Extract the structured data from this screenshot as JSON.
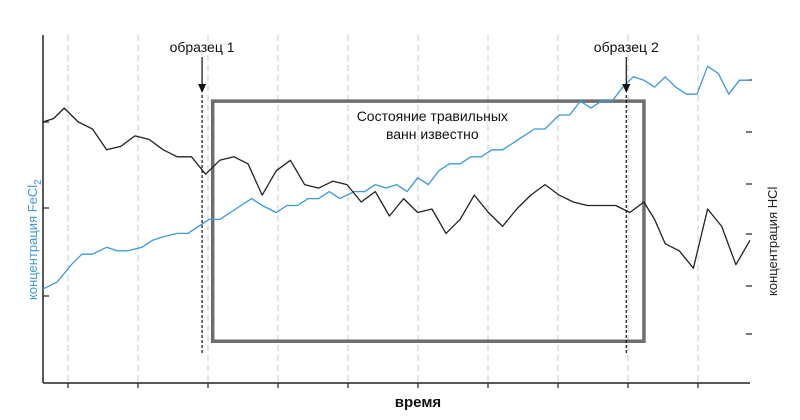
{
  "chart_data": {
    "type": "line",
    "xlabel": "время",
    "ylabel_left": "концентрация FeCl2",
    "ylabel_left_main": "концентрация FeCl",
    "ylabel_left_sub": "2",
    "ylabel_right": "концентрация HCl",
    "grid": "vertical dashed",
    "xlim": [
      0,
      100
    ],
    "ylim": [
      0,
      100
    ],
    "colors": {
      "fecl2": "#3b9ad9",
      "hcl": "#222222",
      "box": "#6e6e6e",
      "axis": "#222222",
      "grid": "#c8c8c8"
    },
    "series": [
      {
        "key": "fecl2",
        "color": "#3b9ad9",
        "x": [
          0,
          2,
          4,
          5.5,
          7,
          9,
          10.5,
          12,
          14,
          15.5,
          17,
          19,
          20.5,
          22,
          23.5,
          25,
          26.5,
          28,
          29.5,
          31,
          33,
          34.5,
          36,
          37.5,
          39,
          40.5,
          42,
          44,
          45.5,
          47,
          48.5,
          50,
          51.5,
          53,
          54.5,
          56,
          57.5,
          59,
          60.5,
          62,
          63.5,
          65,
          66.5,
          68,
          69.5,
          71,
          73,
          74.5,
          76,
          77.5,
          79,
          80.5,
          82,
          83.5,
          85,
          86.5,
          88,
          89.5,
          91,
          92.5,
          94,
          95.5,
          97,
          98.5,
          100
        ],
        "y": [
          27,
          29,
          34,
          37,
          37,
          39,
          38,
          38,
          39,
          41,
          42,
          43,
          43,
          45,
          47,
          47,
          49,
          51,
          53,
          51,
          49,
          51,
          51,
          53,
          53,
          55,
          53,
          55,
          55,
          57,
          56,
          57,
          55,
          59,
          57,
          61,
          63,
          63,
          65,
          65,
          67,
          67,
          69,
          71,
          73,
          73,
          77,
          77,
          81,
          79,
          81,
          81,
          85,
          88,
          87,
          85,
          88,
          85,
          83,
          83,
          91,
          89,
          83,
          87,
          87
        ]
      },
      {
        "key": "hcl",
        "color": "#222222",
        "x": [
          0,
          1.5,
          3,
          5,
          7,
          9,
          11,
          13,
          15,
          17,
          19,
          21,
          23,
          25,
          27,
          29,
          31,
          33,
          35,
          37,
          39,
          41,
          43,
          45,
          47,
          49,
          51,
          53,
          55,
          57,
          59,
          61,
          63,
          65,
          67,
          69,
          71,
          73,
          75,
          77,
          79,
          81,
          83,
          85,
          86.5,
          88,
          90,
          92,
          94,
          96,
          98,
          100
        ],
        "y": [
          75,
          76,
          79,
          75,
          73,
          67,
          68,
          71,
          70,
          67,
          65,
          65,
          60,
          64,
          65,
          63,
          54,
          61,
          64,
          57,
          56,
          58,
          57,
          52,
          55,
          48,
          53,
          49,
          50,
          43,
          47,
          54,
          49,
          45,
          50,
          54,
          57,
          54,
          52,
          51,
          51,
          51,
          49,
          52,
          47,
          40,
          38,
          33,
          50,
          45,
          34,
          41
        ]
      }
    ],
    "annotations": [
      {
        "label": "образец 1",
        "x": 22.5
      },
      {
        "label": "образец 2",
        "x": 82.5
      }
    ],
    "box": {
      "x0": 24,
      "x1": 85,
      "y0": 12,
      "y1": 81,
      "line1": "Состояние травильных",
      "line2": "ванн известно"
    }
  }
}
